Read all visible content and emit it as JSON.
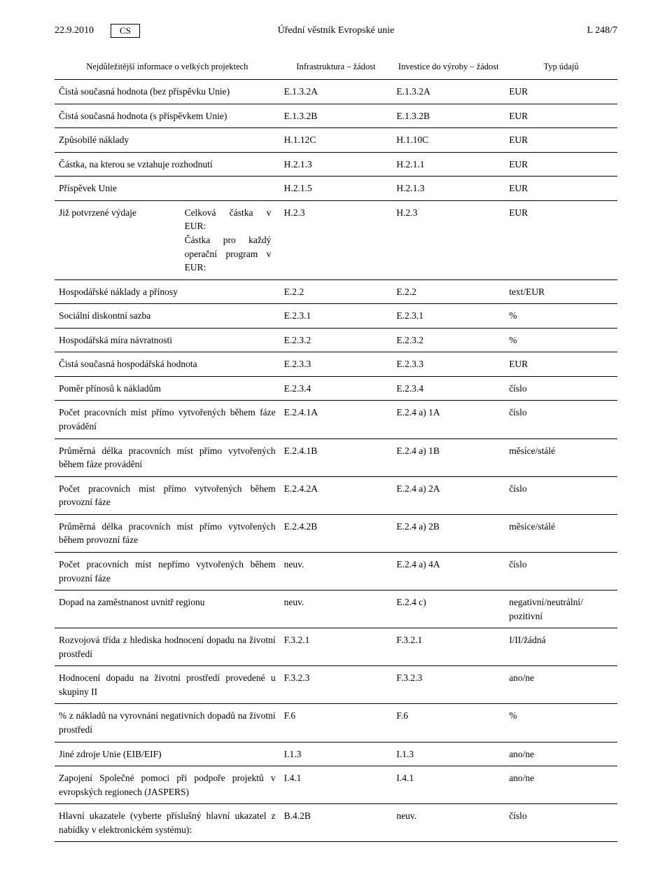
{
  "header": {
    "date": "22.9.2010",
    "lang": "CS",
    "journal": "Úřední věstník Evropské unie",
    "page_ref": "L 248/7"
  },
  "table": {
    "columns": {
      "c1": "Nejdůležitější informace o velkých projektech",
      "c2": "Infrastruktura – žádost",
      "c3": "Investice do výroby – žádost",
      "c4": "Typ údajů"
    },
    "rows": [
      {
        "c1": "Čistá současná hodnota (bez příspěvku Unie)",
        "c2": "E.1.3.2A",
        "c3": "E.1.3.2A",
        "c4": "EUR"
      },
      {
        "c1": "Čistá současná hodnota (s příspěvkem Unie)",
        "c2": "E.1.3.2B",
        "c3": "E.1.3.2B",
        "c4": "EUR"
      },
      {
        "c1": "Způsobilé náklady",
        "c2": "H.1.12C",
        "c3": "H.1.10C",
        "c4": "EUR"
      },
      {
        "c1": "Částka, na kterou se vztahuje rozhodnutí",
        "c2": "H.2.1.3",
        "c3": "H.2.1.1",
        "c4": "EUR"
      },
      {
        "c1": "Příspěvek Unie",
        "c2": "H.2.1.5",
        "c3": "H.2.1.3",
        "c4": "EUR"
      },
      {
        "c1_label": "Již potvrzené výdaje",
        "c1_detail": "Celková částka v EUR:\nČástka pro každý operační program v EUR:",
        "c2": "H.2.3",
        "c3": "H.2.3",
        "c4": "EUR"
      },
      {
        "c1": "Hospodářské náklady a přínosy",
        "c2": "E.2.2",
        "c3": "E.2.2",
        "c4": "text/EUR"
      },
      {
        "c1": "Sociální diskontní sazba",
        "c2": "E.2.3.1",
        "c3": "E.2.3.1",
        "c4": "%"
      },
      {
        "c1": "Hospodářská míra návratnosti",
        "c2": "E.2.3.2",
        "c3": "E.2.3.2",
        "c4": "%"
      },
      {
        "c1": "Čistá současná hospodářská hodnota",
        "c2": "E.2.3.3",
        "c3": "E.2.3.3",
        "c4": "EUR"
      },
      {
        "c1": "Poměr přínosů k nákladům",
        "c2": "E.2.3.4",
        "c3": "E.2.3.4",
        "c4": "číslo"
      },
      {
        "c1": "Počet pracovních míst přímo vytvořených během fáze provádění",
        "c2": "E.2.4.1A",
        "c3": "E.2.4 a) 1A",
        "c4": "číslo"
      },
      {
        "c1": "Průměrná délka pracovních míst přímo vytvořených během fáze provádění",
        "c2": "E.2.4.1B",
        "c3": "E.2.4 a) 1B",
        "c4": "měsíce/stálé"
      },
      {
        "c1": "Počet pracovních míst přímo vytvořených během provozní fáze",
        "c2": "E.2.4.2A",
        "c3": "E.2.4 a) 2A",
        "c4": "číslo"
      },
      {
        "c1": "Průměrná délka pracovních míst přímo vytvořených během provozní fáze",
        "c2": "E.2.4.2B",
        "c3": "E.2.4 a) 2B",
        "c4": "měsíce/stálé"
      },
      {
        "c1": "Počet pracovních míst nepřímo vytvořených během provozní fáze",
        "c2": "neuv.",
        "c3": "E.2.4 a) 4A",
        "c4": "číslo"
      },
      {
        "c1": "Dopad na zaměstnanost uvnitř regionu",
        "c2": "neuv.",
        "c3": "E.2.4 c)",
        "c4": "negativní/neutrální/\npozitivní"
      },
      {
        "c1": "Rozvojová třída z hlediska hodnocení dopadu na životní prostředí",
        "c2": "F.3.2.1",
        "c3": "F.3.2.1",
        "c4": "I/II/žádná"
      },
      {
        "c1": "Hodnocení dopadu na životní prostředí provedené u skupiny II",
        "c2": "F.3.2.3",
        "c3": "F.3.2.3",
        "c4": "ano/ne"
      },
      {
        "c1": "% z nákladů na vyrovnání negativních dopadů na životní prostředí",
        "c2": "F.6",
        "c3": "F.6",
        "c4": "%"
      },
      {
        "c1": "Jiné zdroje Unie (EIB/EIF)",
        "c2": "I.1.3",
        "c3": "I.1.3",
        "c4": "ano/ne"
      },
      {
        "c1": "Zapojení Společné pomoci při podpoře projektů v evropských regionech (JASPERS)",
        "c2": "I.4.1",
        "c3": "I.4.1",
        "c4": "ano/ne"
      },
      {
        "c1": "Hlavní ukazatele (vyberte příslušný hlavní ukazatel z nabídky v elektronickém systému):",
        "c2": "B.4.2B",
        "c3": "neuv.",
        "c4": "číslo"
      }
    ]
  }
}
